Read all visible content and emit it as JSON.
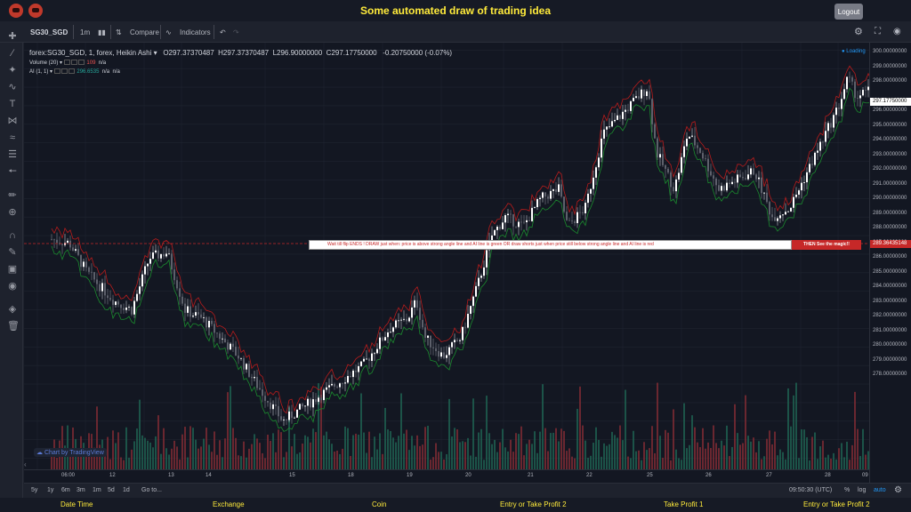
{
  "header": {
    "title": "Some automated draw of trading idea",
    "logout_label": "Logout"
  },
  "toolbar": {
    "symbol": "SG30_SGD",
    "interval": "1m",
    "compare_label": "Compare",
    "indicators_label": "Indicators"
  },
  "legend": {
    "series_title": "forex:SG30_SGD, 1, forex, Heikin Ashi",
    "open": "O297.37370487",
    "high": "H297.37370487",
    "low": "L296.90000000",
    "close": "C297.17750000",
    "change": "-0.20750000 (-0.07%)",
    "volume_label": "Volume (20)",
    "volume_value": "109",
    "volume_na": "n/a",
    "ai_label": "AI (1, 1)",
    "ai_value": "296.6535",
    "ai_na1": "n/a",
    "ai_na2": "n/a",
    "loading": "Loading"
  },
  "banner": {
    "text": "Wait till flip ENDS  !   DRAW just when:  price is above strong angle line and AI line is green          OR          draw shorts just when price still below strong angle line and AI line is red",
    "magic": "THEN See the magic!!"
  },
  "price_axis": {
    "labels": [
      "300.00000000",
      "299.00000000",
      "298.00000000",
      "296.00000000",
      "295.00000000",
      "294.00000000",
      "293.00000000",
      "292.00000000",
      "291.00000000",
      "290.00000000",
      "289.00000000",
      "288.00000000",
      "287.00000000",
      "286.00000000",
      "285.00000000",
      "284.00000000",
      "283.00000000",
      "282.00000000",
      "281.00000000",
      "280.00000000",
      "279.00000000",
      "278.00000000"
    ],
    "current_price": "297.17750000",
    "line_price": "289.36435148"
  },
  "time_axis": {
    "labels": [
      "06:00",
      "12",
      "13",
      "14",
      "15",
      "18",
      "19",
      "20",
      "21",
      "22",
      "25",
      "26",
      "27",
      "28",
      "09"
    ]
  },
  "bottom": {
    "ranges": [
      "5y",
      "1y",
      "6m",
      "3m",
      "1m",
      "5d",
      "1d"
    ],
    "goto": "Go to...",
    "clock": "09:50:30 (UTC)",
    "pct": "%",
    "log": "log",
    "auto": "auto"
  },
  "watermark": "Chart by TradingView",
  "footer": {
    "cols": [
      "Date Time",
      "Exchange",
      "Coin",
      "Entry or Take Profit 2",
      "Take Profit 1",
      "Entry or Take Profit 2"
    ]
  },
  "chart_data": {
    "type": "candlestick",
    "title": "forex:SG30_SGD, 1, forex, Heikin Ashi",
    "ylim": [
      277.5,
      300.3
    ],
    "x_labels": [
      "06:00",
      "12",
      "13",
      "14",
      "15",
      "18",
      "19",
      "20",
      "21",
      "22",
      "25",
      "26",
      "27",
      "28",
      "09"
    ],
    "anchors": [
      [
        0,
        289.8
      ],
      [
        20,
        289.6
      ],
      [
        40,
        288.0
      ],
      [
        70,
        286.5
      ],
      [
        90,
        286.0
      ],
      [
        110,
        288.8
      ],
      [
        130,
        289.1
      ],
      [
        150,
        286.0
      ],
      [
        170,
        285.5
      ],
      [
        190,
        284.5
      ],
      [
        210,
        283.5
      ],
      [
        230,
        282.0
      ],
      [
        260,
        280.0
      ],
      [
        290,
        281.0
      ],
      [
        320,
        282.0
      ],
      [
        350,
        283.0
      ],
      [
        380,
        285.0
      ],
      [
        400,
        285.5
      ],
      [
        410,
        286.5
      ],
      [
        420,
        284.5
      ],
      [
        440,
        283.5
      ],
      [
        460,
        284.5
      ],
      [
        480,
        287.5
      ],
      [
        495,
        290.0
      ],
      [
        510,
        291.0
      ],
      [
        530,
        290.5
      ],
      [
        550,
        292.0
      ],
      [
        570,
        292.5
      ],
      [
        580,
        290.5
      ],
      [
        600,
        291.5
      ],
      [
        620,
        295.5
      ],
      [
        640,
        296.5
      ],
      [
        660,
        297.5
      ],
      [
        670,
        298.0
      ],
      [
        680,
        294.5
      ],
      [
        700,
        292.5
      ],
      [
        715,
        295.5
      ],
      [
        730,
        294.5
      ],
      [
        750,
        292.5
      ],
      [
        770,
        293.0
      ],
      [
        790,
        293.5
      ],
      [
        810,
        291.0
      ],
      [
        830,
        291.5
      ],
      [
        850,
        293.5
      ],
      [
        870,
        295.5
      ],
      [
        885,
        297.0
      ],
      [
        895,
        298.5
      ],
      [
        905,
        297.5
      ],
      [
        920,
        297.8
      ],
      [
        930,
        297.2
      ]
    ],
    "volume_ylim": [
      0,
      130
    ]
  }
}
